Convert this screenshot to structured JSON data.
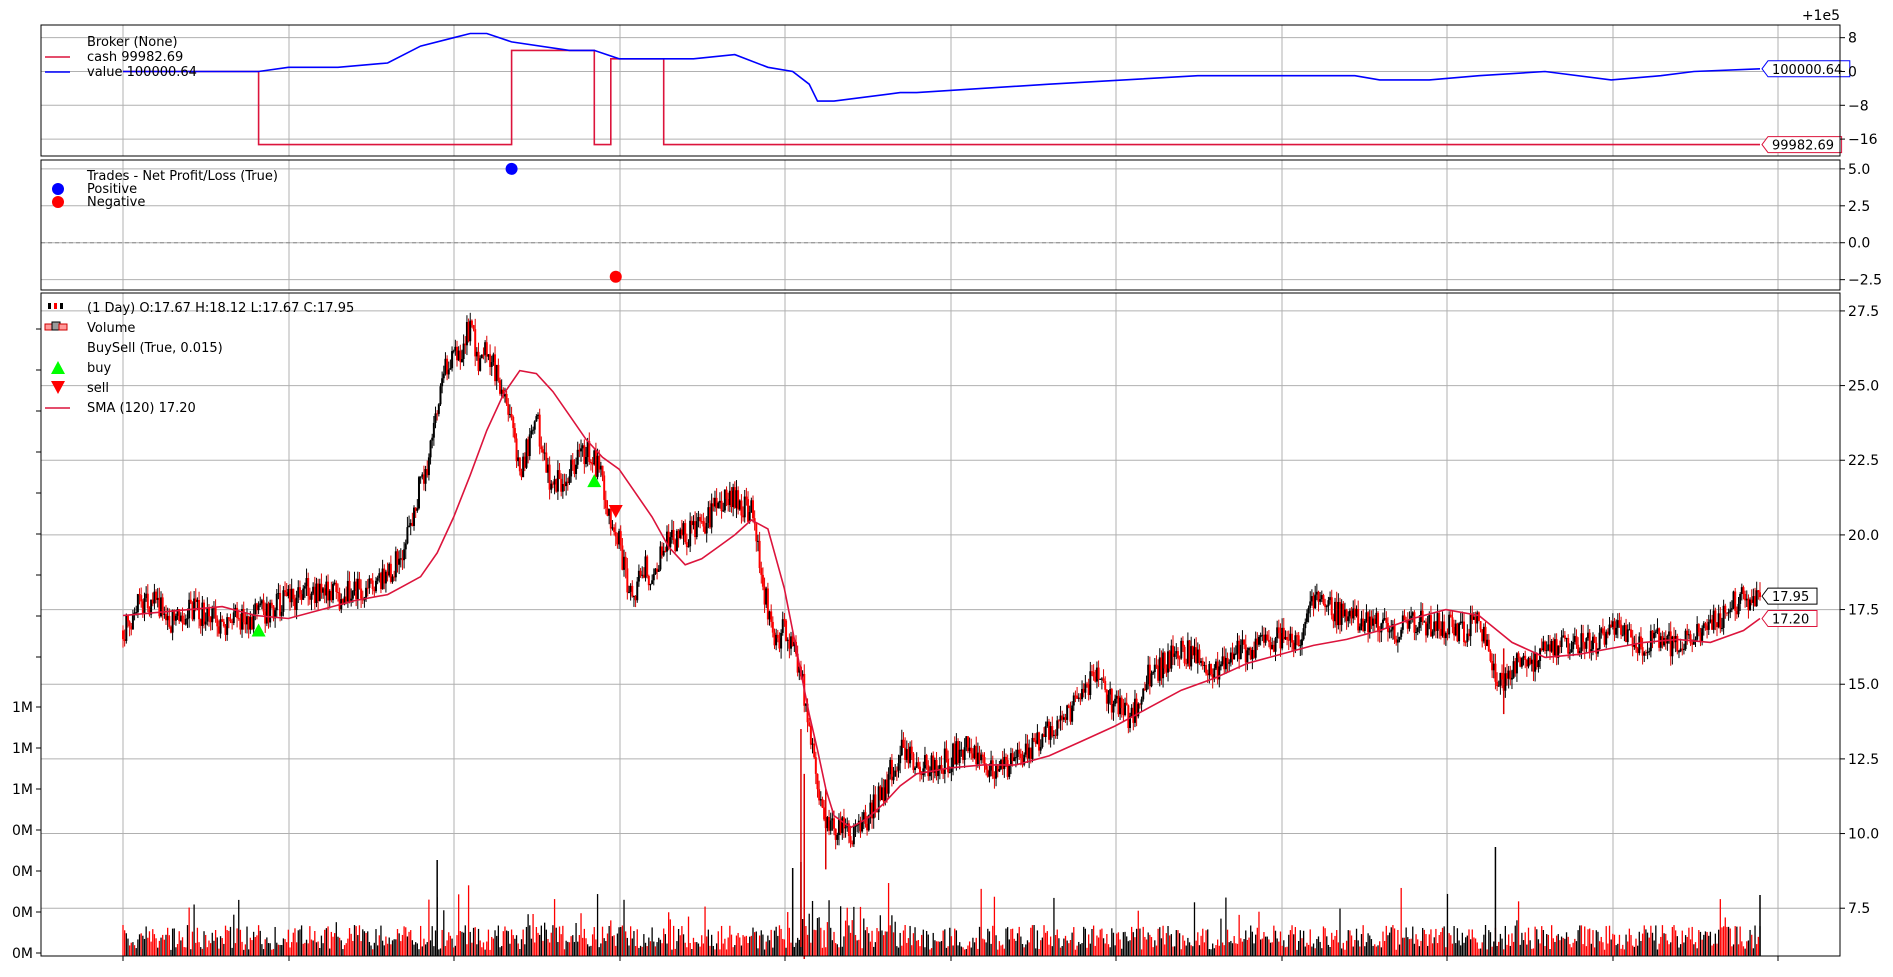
{
  "figure": {
    "offset_label": "+1e5"
  },
  "chart_data": [
    {
      "panel": "broker",
      "type": "line",
      "legend": [
        {
          "text": "Broker (None)",
          "color": ""
        },
        {
          "text": "cash 99982.69",
          "color": "#dc143c"
        },
        {
          "text": "value 100000.64",
          "color": "#0000ff"
        }
      ],
      "y_offset": 100000,
      "ylim": [
        -20,
        11
      ],
      "yticks": [
        "8",
        "0",
        "−8",
        "−16"
      ],
      "ytick_values": [
        8,
        0,
        -8,
        -16
      ],
      "series": [
        {
          "name": "cash",
          "color": "#dc143c",
          "last_label": "99982.69",
          "x": [
            0,
            82,
            82,
            235,
            235,
            285,
            285,
            295,
            295,
            305,
            305,
            327,
            327,
            990
          ],
          "y": [
            0,
            0,
            -17.3,
            -17.3,
            5,
            5,
            -17.3,
            -17.3,
            3,
            3,
            3,
            3,
            -17.3,
            -17.3
          ]
        },
        {
          "name": "value",
          "color": "#0000ff",
          "last_label": "100000.64",
          "x": [
            0,
            82,
            100,
            130,
            160,
            180,
            200,
            210,
            220,
            235,
            270,
            285,
            300,
            320,
            345,
            370,
            390,
            405,
            415,
            420,
            430,
            470,
            480,
            560,
            650,
            745,
            760,
            790,
            820,
            860,
            900,
            930,
            950,
            990
          ],
          "y": [
            0,
            0,
            1,
            1,
            2,
            6,
            8,
            9,
            9,
            7,
            5,
            5,
            3,
            3,
            3,
            4,
            1,
            0,
            -3,
            -7,
            -7,
            -5,
            -5,
            -3,
            -1,
            -1,
            -2,
            -2,
            -1,
            0,
            -2,
            -1,
            0,
            0.64
          ]
        }
      ]
    },
    {
      "panel": "trades",
      "type": "scatter",
      "legend": [
        {
          "text": "Trades - Net Profit/Loss (True)",
          "color": ""
        },
        {
          "text": "Positive",
          "color": "#0000ff"
        },
        {
          "text": "Negative",
          "color": "#ff0000"
        }
      ],
      "ylim": [
        -3.2,
        5.6
      ],
      "yticks": [
        "5.0",
        "2.5",
        "0.0",
        "−2.5"
      ],
      "ytick_values": [
        5.0,
        2.5,
        0.0,
        -2.5
      ],
      "points": [
        {
          "x": 235,
          "y": 5.0,
          "type": "Positive"
        },
        {
          "x": 298,
          "y": -2.3,
          "type": "Negative"
        }
      ]
    },
    {
      "panel": "price",
      "type": "candlestick",
      "legend": [
        {
          "text": " (1 Day) O:17.67 H:18.12 L:17.67 C:17.95",
          "color": ""
        },
        {
          "text": "Volume",
          "color": ""
        },
        {
          "text": "BuySell (True, 0.015)",
          "color": ""
        },
        {
          "text": "buy",
          "color": "#00ff00"
        },
        {
          "text": "sell",
          "color": "#ff0000"
        },
        {
          "text": "SMA (120) 17.20",
          "color": "#dc143c"
        }
      ],
      "ylim": [
        5.9,
        28.1
      ],
      "yticks": [
        "27.5",
        "25.0",
        "22.5",
        "20.0",
        "17.5",
        "15.0",
        "12.5",
        "10.0",
        "7.5"
      ],
      "ytick_values": [
        27.5,
        25.0,
        22.5,
        20.0,
        17.5,
        15.0,
        12.5,
        10.0,
        7.5
      ],
      "volume_ticks": [
        "1M",
        "1M",
        "1M",
        "0M",
        "0M",
        "0M",
        "0M"
      ],
      "last_close_label": "17.95",
      "last_sma_label": "17.20",
      "close": {
        "x": [
          0,
          10,
          20,
          30,
          40,
          50,
          60,
          70,
          80,
          90,
          100,
          110,
          120,
          130,
          140,
          150,
          160,
          170,
          175,
          180,
          185,
          190,
          195,
          200,
          205,
          210,
          215,
          220,
          225,
          230,
          235,
          240,
          245,
          250,
          255,
          260,
          270,
          280,
          285,
          290,
          295,
          300,
          305,
          310,
          315,
          320,
          325,
          330,
          340,
          350,
          360,
          370,
          380,
          385,
          390,
          395,
          400,
          405,
          410,
          415,
          420,
          425,
          430,
          440,
          450,
          460,
          470,
          480,
          490,
          500,
          510,
          520,
          530,
          540,
          550,
          560,
          570,
          580,
          590,
          600,
          610,
          620,
          630,
          640,
          650,
          660,
          670,
          680,
          690,
          700,
          710,
          720,
          730,
          740,
          750,
          760,
          770,
          780,
          790,
          800,
          810,
          820,
          830,
          834,
          840,
          850,
          860,
          870,
          880,
          890,
          900,
          910,
          920,
          930,
          940,
          950,
          960,
          970,
          980,
          990
        ],
        "y": [
          16.8,
          17.7,
          17.8,
          17.1,
          17.6,
          17.3,
          17.0,
          17.2,
          17.3,
          17.5,
          17.8,
          18.1,
          18.2,
          17.9,
          18.3,
          18.1,
          18.6,
          19.5,
          20.5,
          21.8,
          22.5,
          24.5,
          25.5,
          25.8,
          26.2,
          27.0,
          25.8,
          26.2,
          25.5,
          24.5,
          23.5,
          22.2,
          23.0,
          24.0,
          22.5,
          21.6,
          22.0,
          22.8,
          22.5,
          21.8,
          20.5,
          19.8,
          18.5,
          18.0,
          19.0,
          18.5,
          19.3,
          19.8,
          20.0,
          20.3,
          21.0,
          21.2,
          20.8,
          19.0,
          17.5,
          16.5,
          16.8,
          16.2,
          15.5,
          13.5,
          11.5,
          10.5,
          10.2,
          10.0,
          10.5,
          11.5,
          12.8,
          12.3,
          12.2,
          12.5,
          13.0,
          12.5,
          12.0,
          12.5,
          12.9,
          13.5,
          13.9,
          14.8,
          15.2,
          14.2,
          13.9,
          15.3,
          15.7,
          16.2,
          15.8,
          15.3,
          16.2,
          16.0,
          16.3,
          16.5,
          16.3,
          17.8,
          17.5,
          17.2,
          17.0,
          17.1,
          16.8,
          17.2,
          16.9,
          17.0,
          16.8,
          17.1,
          15.3,
          15.0,
          15.6,
          15.8,
          16.0,
          16.2,
          16.4,
          16.3,
          16.9,
          16.6,
          16.3,
          16.5,
          16.2,
          16.5,
          16.9,
          17.5,
          17.9,
          17.95
        ]
      },
      "sma": {
        "name": "SMA (120)",
        "color": "#dc143c",
        "x": [
          0,
          40,
          60,
          80,
          100,
          120,
          140,
          160,
          170,
          180,
          190,
          200,
          210,
          220,
          230,
          240,
          250,
          260,
          270,
          280,
          290,
          300,
          310,
          320,
          330,
          340,
          350,
          360,
          370,
          380,
          390,
          400,
          410,
          415,
          420,
          425,
          430,
          440,
          450,
          460,
          470,
          480,
          500,
          520,
          540,
          560,
          580,
          600,
          620,
          640,
          660,
          680,
          700,
          720,
          740,
          760,
          780,
          800,
          820,
          840,
          860,
          880,
          900,
          920,
          940,
          960,
          980,
          990
        ],
        "y": [
          17.3,
          17.5,
          17.6,
          17.3,
          17.2,
          17.5,
          17.8,
          18.0,
          18.3,
          18.6,
          19.4,
          20.6,
          22.0,
          23.5,
          24.7,
          25.5,
          25.4,
          24.8,
          24.0,
          23.2,
          22.6,
          22.2,
          21.4,
          20.6,
          19.6,
          19.0,
          19.2,
          19.6,
          20.0,
          20.5,
          20.2,
          18.2,
          15.4,
          14.0,
          12.8,
          11.5,
          10.6,
          10.2,
          10.5,
          11.0,
          11.6,
          12.0,
          12.2,
          12.3,
          12.3,
          12.6,
          13.1,
          13.6,
          14.2,
          14.8,
          15.2,
          15.7,
          16.0,
          16.3,
          16.5,
          16.8,
          17.2,
          17.5,
          17.3,
          16.4,
          15.9,
          16.0,
          16.2,
          16.4,
          16.5,
          16.4,
          16.8,
          17.2
        ]
      },
      "buy_markers": [
        {
          "x": 82,
          "y": 16.8
        },
        {
          "x": 285,
          "y": 21.8
        }
      ],
      "sell_markers": [
        {
          "x": 298,
          "y": 20.8
        }
      ]
    }
  ]
}
